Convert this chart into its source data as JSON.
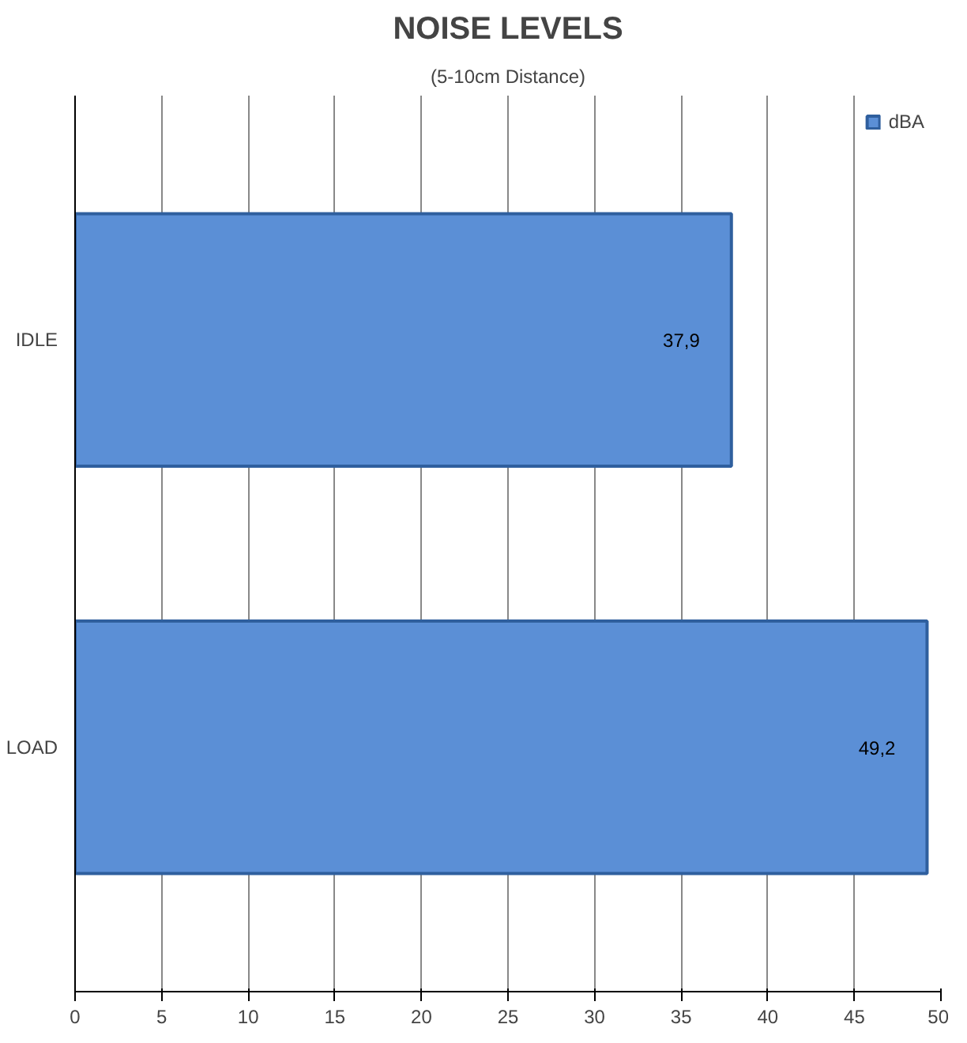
{
  "chart_data": {
    "type": "bar",
    "orientation": "horizontal",
    "title": "NOISE LEVELS",
    "subtitle": "(5-10cm Distance)",
    "categories": [
      "IDLE",
      "LOAD"
    ],
    "series": [
      {
        "name": "dBA",
        "color": "#5b8fd6",
        "values": [
          37.9,
          49.2
        ],
        "value_labels": [
          "37,9",
          "49,2"
        ]
      }
    ],
    "xlim": [
      0,
      50
    ],
    "xticks": [
      0,
      5,
      10,
      15,
      20,
      25,
      30,
      35,
      40,
      45,
      50
    ],
    "grid": "x",
    "legend": "top right"
  }
}
